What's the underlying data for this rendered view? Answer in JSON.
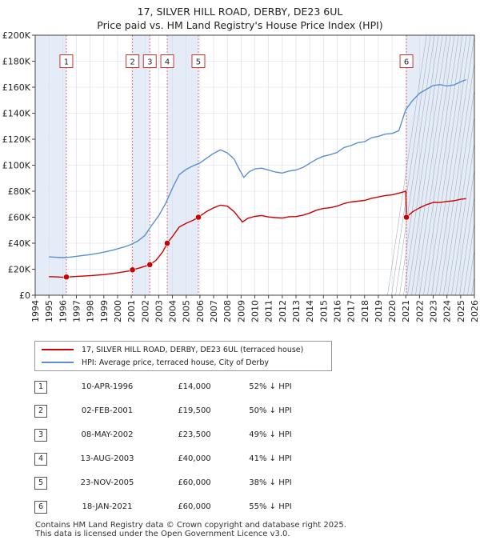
{
  "chart_data": {
    "type": "line",
    "title": "17, SILVER HILL ROAD, DERBY, DE23 6UL",
    "subtitle": "Price paid vs. HM Land Registry's House Price Index (HPI)",
    "xlim": [
      1994,
      2026
    ],
    "ylim": [
      0,
      200000
    ],
    "x_ticks": [
      "1994",
      "1995",
      "1996",
      "1997",
      "1998",
      "1999",
      "2000",
      "2001",
      "2002",
      "2003",
      "2004",
      "2005",
      "2006",
      "2007",
      "2008",
      "2009",
      "2010",
      "2011",
      "2012",
      "2013",
      "2014",
      "2015",
      "2016",
      "2017",
      "2018",
      "2019",
      "2020",
      "2021",
      "2022",
      "2023",
      "2024",
      "2025",
      "2026"
    ],
    "y_ticks": [
      {
        "value": 0,
        "label": "£0"
      },
      {
        "value": 20000,
        "label": "£20K"
      },
      {
        "value": 40000,
        "label": "£40K"
      },
      {
        "value": 60000,
        "label": "£60K"
      },
      {
        "value": 80000,
        "label": "£80K"
      },
      {
        "value": 100000,
        "label": "£100K"
      },
      {
        "value": 120000,
        "label": "£120K"
      },
      {
        "value": 140000,
        "label": "£140K"
      },
      {
        "value": 160000,
        "label": "£160K"
      },
      {
        "value": 180000,
        "label": "£180K"
      },
      {
        "value": 200000,
        "label": "£200K"
      }
    ],
    "grid": true,
    "shaded_ranges": [
      [
        1994,
        1996.27
      ],
      [
        2001.09,
        2002.35
      ],
      [
        2003.62,
        2005.89
      ],
      [
        2021.05,
        2026
      ]
    ],
    "series": [
      {
        "name": "17, SILVER HILL ROAD, DERBY, DE23 6UL (terraced house)",
        "color": "#cc0000",
        "x": [
          1995.0,
          1995.5,
          1996.0,
          1996.27,
          1997.0,
          1998.0,
          1999.0,
          2000.0,
          2000.8,
          2001.09,
          2001.5,
          2002.0,
          2002.35,
          2002.8,
          2003.3,
          2003.62,
          2004.0,
          2004.5,
          2005.0,
          2005.5,
          2005.89,
          2006.5,
          2007.0,
          2007.5,
          2008.0,
          2008.5,
          2008.8,
          2009.1,
          2009.5,
          2010.0,
          2010.5,
          2011.0,
          2011.5,
          2012.0,
          2012.5,
          2013.0,
          2013.5,
          2014.0,
          2014.5,
          2015.0,
          2015.5,
          2016.0,
          2016.5,
          2017.0,
          2017.5,
          2018.0,
          2018.5,
          2019.0,
          2019.5,
          2020.0,
          2020.5,
          2020.95,
          2021.0,
          2021.05,
          2021.5,
          2022.0,
          2022.5,
          2023.0,
          2023.5,
          2024.0,
          2024.5,
          2025.0,
          2025.4
        ],
        "values": [
          14300,
          14100,
          13800,
          14000,
          14400,
          15000,
          15800,
          17200,
          18600,
          19500,
          20700,
          22300,
          23500,
          26800,
          33500,
          40000,
          45200,
          52500,
          55300,
          57600,
          60000,
          64500,
          67200,
          69300,
          68500,
          64200,
          60200,
          56300,
          59200,
          60600,
          61300,
          60200,
          59700,
          59300,
          60400,
          60500,
          61500,
          63200,
          65400,
          66700,
          67300,
          68500,
          70500,
          71700,
          72300,
          72900,
          74500,
          75600,
          76700,
          77200,
          78500,
          79800,
          80200,
          60000,
          64200,
          67200,
          69600,
          71400,
          71300,
          72100,
          72600,
          73800,
          74300
        ]
      },
      {
        "name": "HPI: Average price, terraced house, City of Derby",
        "color": "#5b8fd1",
        "x": [
          1995.0,
          1995.5,
          1996.0,
          1996.5,
          1997.0,
          1997.5,
          1998.0,
          1998.5,
          1999.0,
          1999.5,
          2000.0,
          2000.5,
          2001.0,
          2001.5,
          2002.0,
          2002.5,
          2003.0,
          2003.5,
          2004.0,
          2004.5,
          2005.0,
          2005.5,
          2006.0,
          2006.5,
          2007.0,
          2007.5,
          2008.0,
          2008.5,
          2008.8,
          2009.2,
          2009.6,
          2010.0,
          2010.5,
          2011.0,
          2011.5,
          2012.0,
          2012.5,
          2013.0,
          2013.5,
          2014.0,
          2014.5,
          2015.0,
          2015.5,
          2016.0,
          2016.5,
          2017.0,
          2017.5,
          2018.0,
          2018.5,
          2019.0,
          2019.5,
          2020.0,
          2020.5,
          2021.0,
          2021.5,
          2022.0,
          2022.5,
          2023.0,
          2023.5,
          2024.0,
          2024.5,
          2025.0,
          2025.4
        ],
        "values": [
          29500,
          29200,
          28900,
          29300,
          29900,
          30600,
          31200,
          32100,
          33100,
          34300,
          35600,
          37200,
          39100,
          41800,
          46100,
          53900,
          61100,
          70500,
          82400,
          92800,
          96800,
          99500,
          101700,
          105500,
          109100,
          111800,
          109500,
          104600,
          98200,
          90600,
          95000,
          97100,
          97700,
          96200,
          94800,
          94000,
          95500,
          96300,
          98200,
          101400,
          104600,
          106900,
          108100,
          109800,
          113600,
          115100,
          117300,
          118100,
          121100,
          122200,
          123900,
          124400,
          126600,
          142800,
          149800,
          155300,
          158400,
          161300,
          162000,
          160900,
          161700,
          164200,
          165800
        ]
      }
    ],
    "markers": [
      {
        "label": "1",
        "x": 1996.27,
        "value": 14000
      },
      {
        "label": "2",
        "x": 2001.09,
        "value": 19500
      },
      {
        "label": "3",
        "x": 2002.35,
        "value": 23500
      },
      {
        "label": "4",
        "x": 2003.62,
        "value": 40000
      },
      {
        "label": "5",
        "x": 2005.89,
        "value": 60000
      },
      {
        "label": "6",
        "x": 2021.05,
        "value": 60000
      }
    ]
  },
  "legend": {
    "property_label": "17, SILVER HILL ROAD, DERBY, DE23 6UL (terraced house)",
    "hpi_label": "HPI: Average price, terraced house, City of Derby",
    "property_color": "#cc0000",
    "hpi_color": "#5b8fd1"
  },
  "sales": [
    {
      "num": "1",
      "date": "10-APR-1996",
      "price": "£14,000",
      "hpi": "52% ↓ HPI"
    },
    {
      "num": "2",
      "date": "02-FEB-2001",
      "price": "£19,500",
      "hpi": "50% ↓ HPI"
    },
    {
      "num": "3",
      "date": "08-MAY-2002",
      "price": "£23,500",
      "hpi": "49% ↓ HPI"
    },
    {
      "num": "4",
      "date": "13-AUG-2003",
      "price": "£40,000",
      "hpi": "41% ↓ HPI"
    },
    {
      "num": "5",
      "date": "23-NOV-2005",
      "price": "£60,000",
      "hpi": "38% ↓ HPI"
    },
    {
      "num": "6",
      "date": "18-JAN-2021",
      "price": "£60,000",
      "hpi": "55% ↓ HPI"
    }
  ],
  "footer": {
    "line1": "Contains HM Land Registry data © Crown copyright and database right 2025.",
    "line2": "This data is licensed under the Open Government Licence v3.0."
  }
}
